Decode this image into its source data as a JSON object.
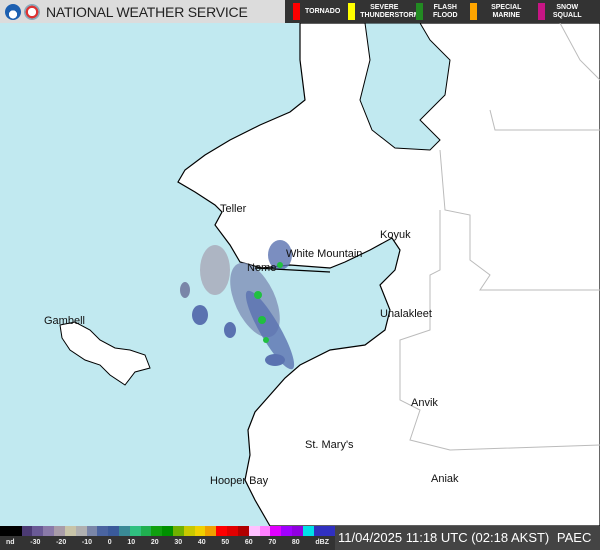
{
  "header": {
    "title": "NATIONAL WEATHER SERVICE",
    "logos": [
      "noaa-logo",
      "nws-logo"
    ]
  },
  "warnings": [
    {
      "label": "TORNADO",
      "color": "#ff0000"
    },
    {
      "label": "SEVERE THUNDERSTORM",
      "color": "#ffff00"
    },
    {
      "label": "FLASH FLOOD",
      "color": "#228b22"
    },
    {
      "label": "SPECIAL MARINE",
      "color": "#ffa500"
    },
    {
      "label": "SNOW SQUALL",
      "color": "#c71585"
    }
  ],
  "places": [
    {
      "name": "Teller"
    },
    {
      "name": "White Mountain"
    },
    {
      "name": "Nome"
    },
    {
      "name": "Koyuk"
    },
    {
      "name": "Unalakleet"
    },
    {
      "name": "Gambell"
    },
    {
      "name": "Anvik"
    },
    {
      "name": "St. Mary's"
    },
    {
      "name": "Hooper Bay"
    },
    {
      "name": "Aniak"
    }
  ],
  "scale": {
    "ticks": [
      "nd",
      "-30",
      "-20",
      "-10",
      "0",
      "10",
      "20",
      "30",
      "40",
      "50",
      "60",
      "70",
      "80",
      "dBZ"
    ],
    "colors": [
      "#000000",
      "#000000",
      "#4b3a73",
      "#6a5a95",
      "#8a7aa8",
      "#a89ca8",
      "#c8c4a8",
      "#b0b0b0",
      "#7a86a8",
      "#4a64a0",
      "#3a5a9a",
      "#3a8a96",
      "#30c080",
      "#20b050",
      "#10a010",
      "#009000",
      "#70b000",
      "#c8c800",
      "#f0d000",
      "#f0a000",
      "#ff0000",
      "#e00000",
      "#b00000",
      "#ffc0ff",
      "#ff80ff",
      "#e000ff",
      "#a000ff",
      "#9000e0",
      "#00e0e8",
      "#3030c0",
      "#3030c0"
    ]
  },
  "colors": {
    "water": "#c1e9f0",
    "land": "#ffffff"
  },
  "timestamp": "11/04/2025 11:18 UTC (02:18 AKST)",
  "station": "PAEC"
}
